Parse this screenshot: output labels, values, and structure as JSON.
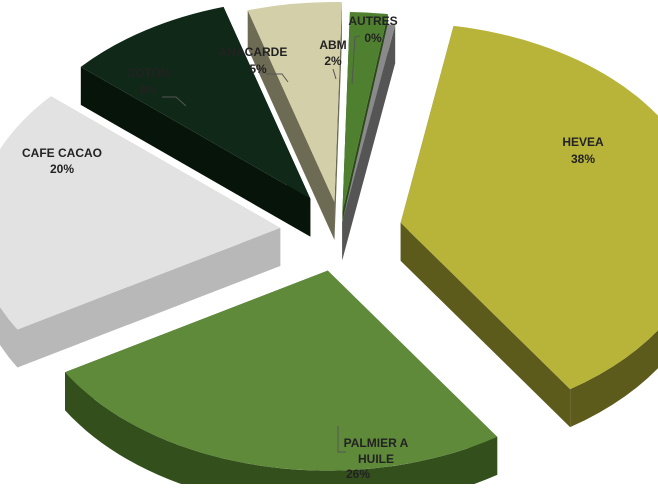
{
  "chart_data": {
    "type": "pie",
    "variant": "3d-exploded",
    "title": "",
    "slices": [
      {
        "name": "HEVEA",
        "value": 38,
        "label": "38%",
        "color": "#b8b43a",
        "side_color": "#5d5b1c"
      },
      {
        "name": "PALMIER A HUILE",
        "value": 26,
        "label": "26%",
        "color": "#5f8a3a",
        "side_color": "#33501c"
      },
      {
        "name": "CAFE CACAO",
        "value": 20,
        "label": "20%",
        "color": "#e2e2e2",
        "side_color": "#b8b8b8"
      },
      {
        "name": "COTON",
        "value": 9,
        "label": "9%",
        "color": "#102818",
        "side_color": "#06140a"
      },
      {
        "name": "ANACARDE",
        "value": 5,
        "label": "5%",
        "color": "#d3cfa8",
        "side_color": "#6e6b55"
      },
      {
        "name": "ABM",
        "value": 2,
        "label": "2%",
        "color": "#4f8030",
        "side_color": "#2c4a18"
      },
      {
        "name": "AUTRES",
        "value": 0,
        "label": "0%",
        "color": "#8a8a8a",
        "side_color": "#555555"
      }
    ]
  }
}
